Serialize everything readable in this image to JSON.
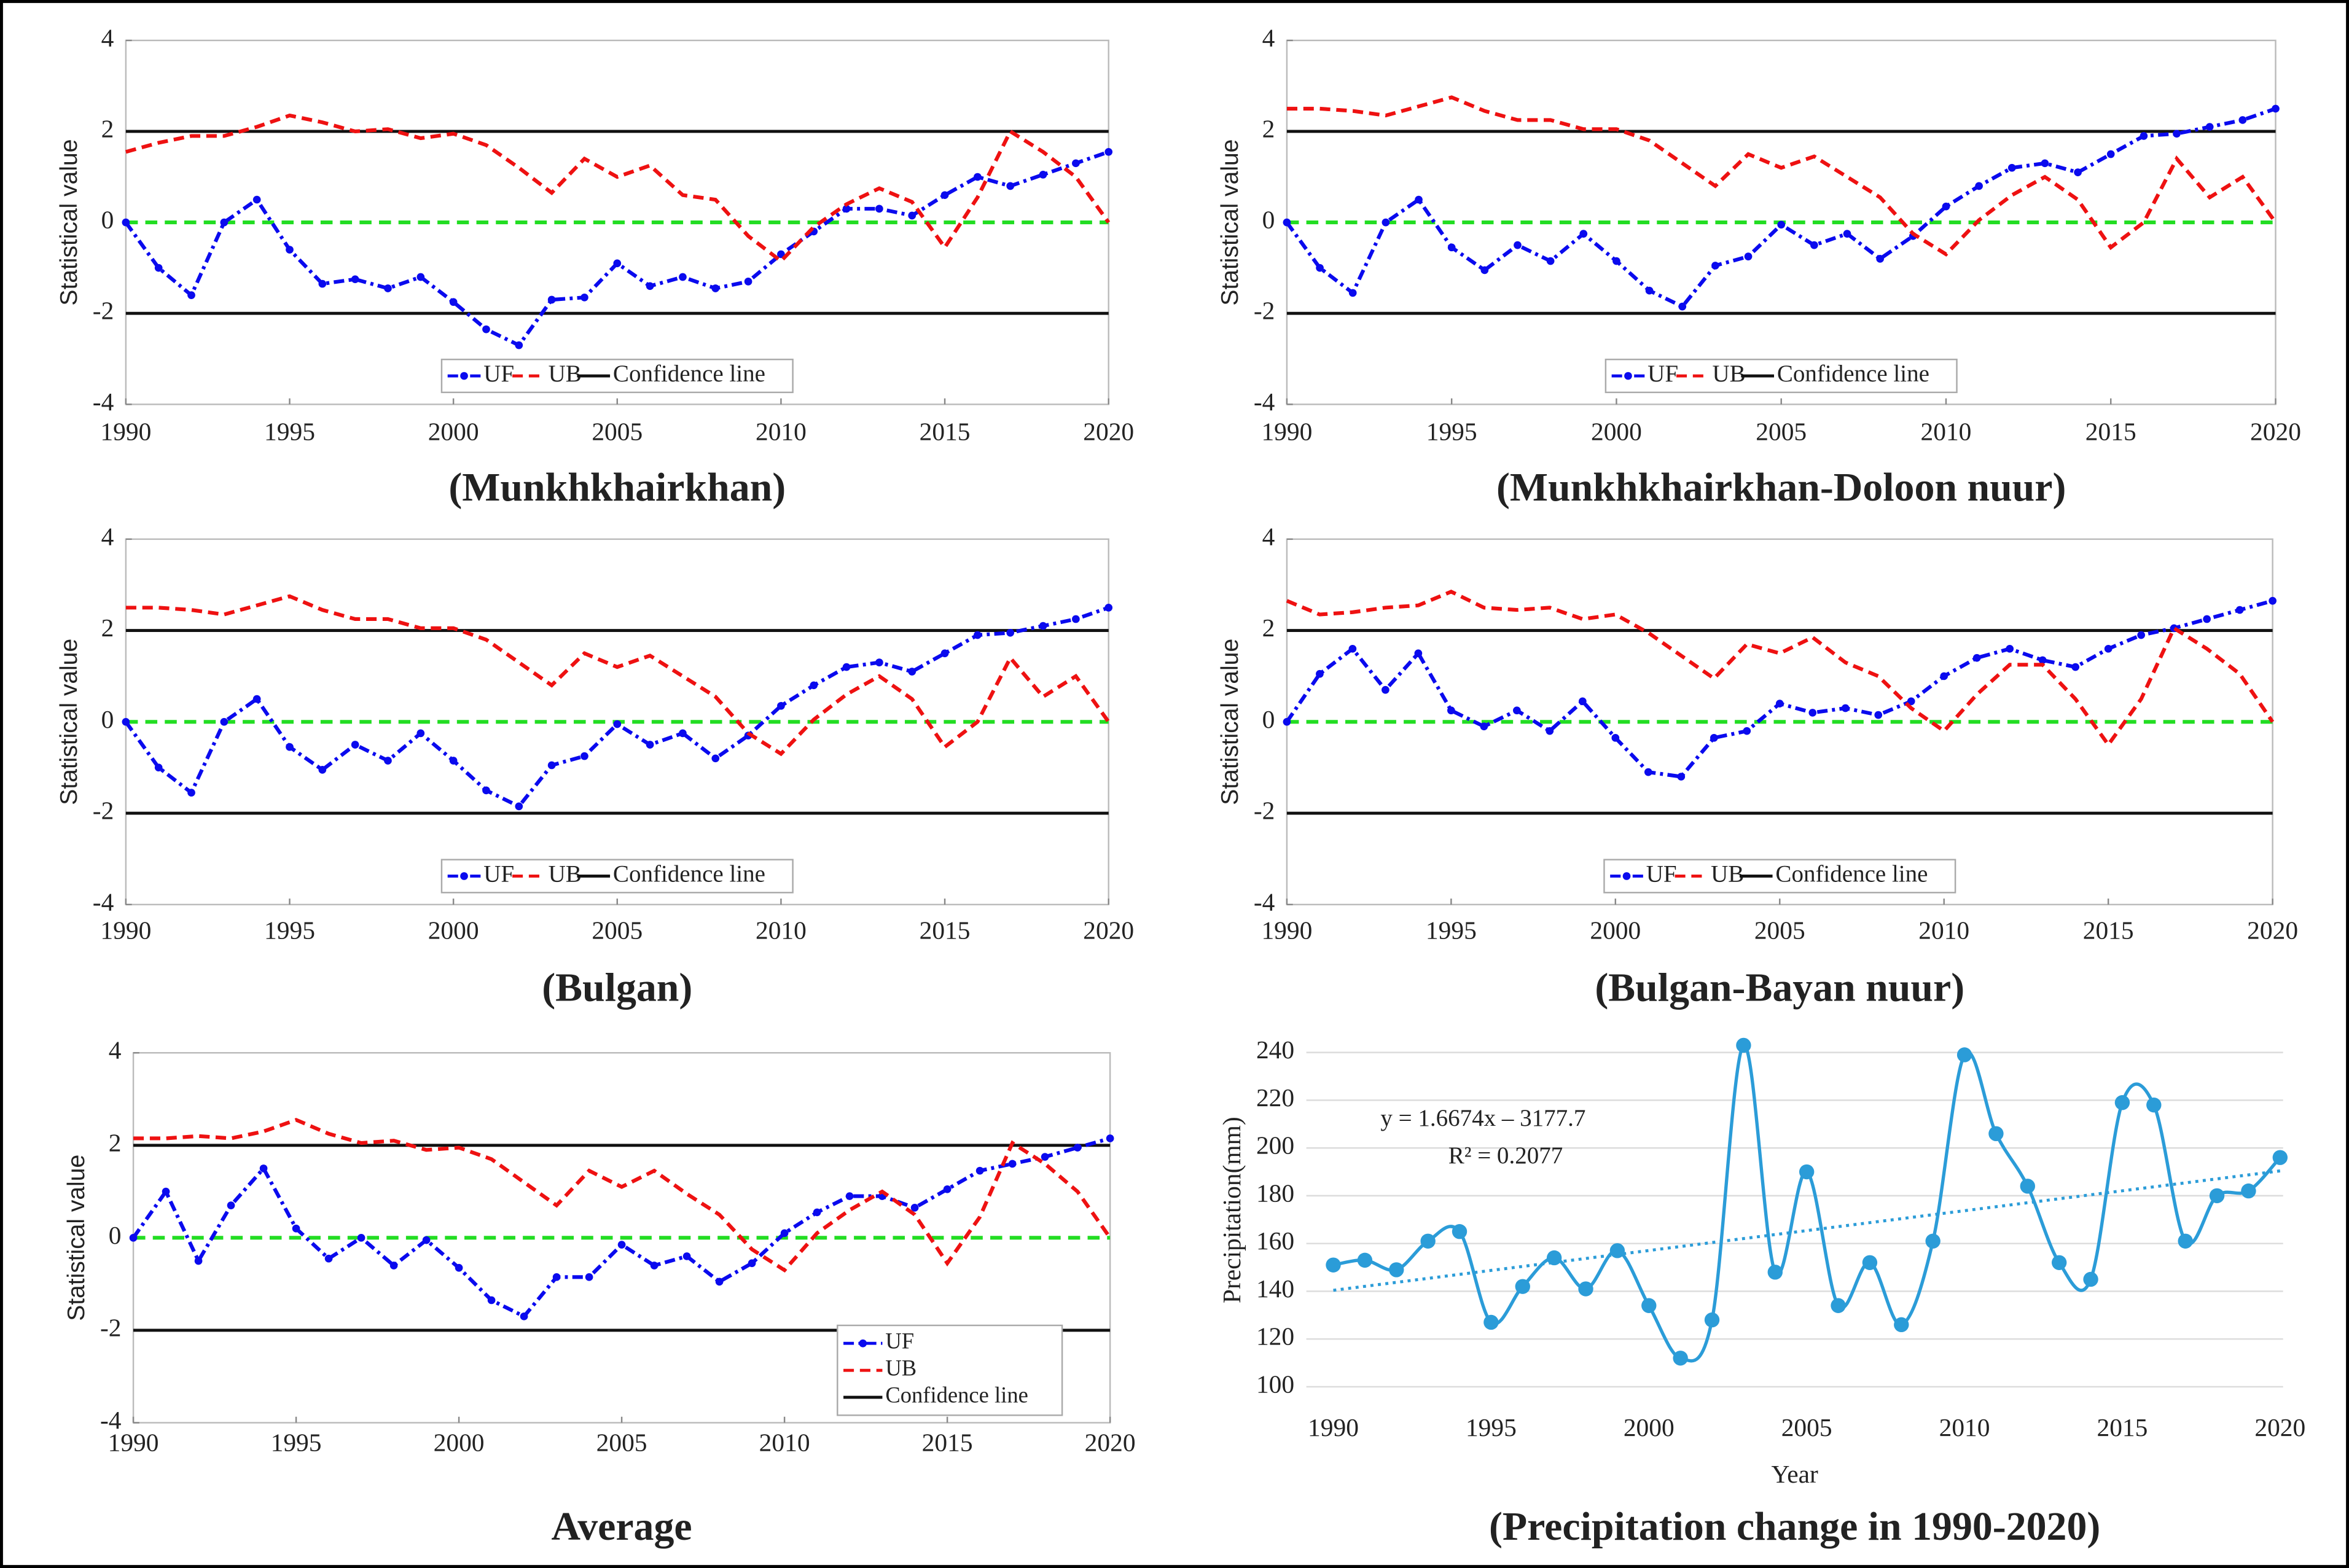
{
  "chart_data": [
    {
      "type": "line",
      "title": "(Munkhkhairkhan)",
      "ylabel": "Statistical value",
      "x": [
        1990,
        1991,
        1992,
        1993,
        1994,
        1995,
        1996,
        1997,
        1998,
        1999,
        2000,
        2001,
        2002,
        2003,
        2004,
        2005,
        2006,
        2007,
        2008,
        2009,
        2010,
        2011,
        2012,
        2013,
        2014,
        2015,
        2016,
        2017,
        2018,
        2019,
        2020
      ],
      "series": [
        {
          "name": "UF",
          "color": "#0a0aee",
          "style": "dashdot",
          "marker": true,
          "values": [
            0,
            -1.0,
            -1.6,
            0,
            0.5,
            -0.6,
            -1.35,
            -1.25,
            -1.45,
            -1.2,
            -1.75,
            -2.35,
            -2.7,
            -1.7,
            -1.65,
            -0.9,
            -1.4,
            -1.2,
            -1.45,
            -1.3,
            -0.7,
            -0.2,
            0.3,
            0.3,
            0.15,
            0.6,
            1.0,
            0.8,
            1.05,
            1.3,
            1.55
          ]
        },
        {
          "name": "UB",
          "color": "#ee1111",
          "style": "dashed",
          "marker": false,
          "values": [
            1.55,
            1.75,
            1.9,
            1.9,
            2.1,
            2.35,
            2.2,
            2.0,
            2.05,
            1.85,
            1.95,
            1.7,
            1.2,
            0.65,
            1.4,
            1.0,
            1.25,
            0.6,
            0.5,
            -0.3,
            -0.85,
            -0.1,
            0.4,
            0.75,
            0.45,
            -0.55,
            0.55,
            2.0,
            1.55,
            1.0,
            0
          ]
        }
      ],
      "reference_lines": {
        "name": "Confidence line",
        "color": "#111111",
        "values": [
          -2,
          2
        ]
      },
      "zero_line": {
        "value": 0,
        "color": "#22dd22"
      },
      "xlim": [
        1990,
        2020
      ],
      "xticks": [
        1990,
        1995,
        2000,
        2005,
        2010,
        2015,
        2020
      ],
      "ylim": [
        -4,
        4
      ],
      "yticks": [
        -4,
        -2,
        0,
        2,
        4
      ],
      "legend": "lower center"
    },
    {
      "type": "line",
      "title": "(Munkhkhairkhan-Doloon nuur)",
      "ylabel": "Statistical value",
      "x": [
        1990,
        1991,
        1992,
        1993,
        1994,
        1995,
        1996,
        1997,
        1998,
        1999,
        2000,
        2001,
        2002,
        2003,
        2004,
        2005,
        2006,
        2007,
        2008,
        2009,
        2010,
        2011,
        2012,
        2013,
        2014,
        2015,
        2016,
        2017,
        2018,
        2019,
        2020
      ],
      "series": [
        {
          "name": "UF",
          "color": "#0a0aee",
          "style": "dashdot",
          "marker": true,
          "values": [
            0,
            -1.0,
            -1.55,
            0,
            0.5,
            -0.55,
            -1.05,
            -0.5,
            -0.85,
            -0.25,
            -0.85,
            -1.5,
            -1.85,
            -0.95,
            -0.75,
            -0.05,
            -0.5,
            -0.25,
            -0.8,
            -0.3,
            0.35,
            0.8,
            1.2,
            1.3,
            1.1,
            1.5,
            1.9,
            1.95,
            2.1,
            2.25,
            2.5
          ]
        },
        {
          "name": "UB",
          "color": "#ee1111",
          "style": "dashed",
          "marker": false,
          "values": [
            2.5,
            2.5,
            2.45,
            2.35,
            2.55,
            2.75,
            2.45,
            2.25,
            2.25,
            2.05,
            2.05,
            1.8,
            1.3,
            0.8,
            1.5,
            1.2,
            1.45,
            1.0,
            0.55,
            -0.25,
            -0.7,
            0.05,
            0.6,
            1.0,
            0.5,
            -0.55,
            0.0,
            1.4,
            0.55,
            1.0,
            0
          ]
        }
      ],
      "reference_lines": {
        "name": "Confidence line",
        "color": "#111111",
        "values": [
          -2,
          2
        ]
      },
      "zero_line": {
        "value": 0,
        "color": "#22dd22"
      },
      "xlim": [
        1990,
        2020
      ],
      "xticks": [
        1990,
        1995,
        2000,
        2005,
        2010,
        2015,
        2020
      ],
      "ylim": [
        -4,
        4
      ],
      "yticks": [
        -4,
        -2,
        0,
        2,
        4
      ],
      "legend": "lower center"
    },
    {
      "type": "line",
      "title": "(Bulgan)",
      "ylabel": "Statistical value",
      "x": [
        1990,
        1991,
        1992,
        1993,
        1994,
        1995,
        1996,
        1997,
        1998,
        1999,
        2000,
        2001,
        2002,
        2003,
        2004,
        2005,
        2006,
        2007,
        2008,
        2009,
        2010,
        2011,
        2012,
        2013,
        2014,
        2015,
        2016,
        2017,
        2018,
        2019,
        2020
      ],
      "series": [
        {
          "name": "UF",
          "color": "#0a0aee",
          "style": "dashdot",
          "marker": true,
          "values": [
            0,
            -1.0,
            -1.55,
            0,
            0.5,
            -0.55,
            -1.05,
            -0.5,
            -0.85,
            -0.25,
            -0.85,
            -1.5,
            -1.85,
            -0.95,
            -0.75,
            -0.05,
            -0.5,
            -0.25,
            -0.8,
            -0.3,
            0.35,
            0.8,
            1.2,
            1.3,
            1.1,
            1.5,
            1.9,
            1.95,
            2.1,
            2.25,
            2.5
          ]
        },
        {
          "name": "UB",
          "color": "#ee1111",
          "style": "dashed",
          "marker": false,
          "values": [
            2.5,
            2.5,
            2.45,
            2.35,
            2.55,
            2.75,
            2.45,
            2.25,
            2.25,
            2.05,
            2.05,
            1.8,
            1.3,
            0.8,
            1.5,
            1.2,
            1.45,
            1.0,
            0.55,
            -0.25,
            -0.7,
            0.05,
            0.6,
            1.0,
            0.5,
            -0.55,
            0.0,
            1.4,
            0.55,
            1.0,
            0
          ]
        }
      ],
      "reference_lines": {
        "name": "Confidence line",
        "color": "#111111",
        "values": [
          -2,
          2
        ]
      },
      "zero_line": {
        "value": 0,
        "color": "#22dd22"
      },
      "xlim": [
        1990,
        2020
      ],
      "xticks": [
        1990,
        1995,
        2000,
        2005,
        2010,
        2015,
        2020
      ],
      "ylim": [
        -4,
        4
      ],
      "yticks": [
        -4,
        -2,
        0,
        2,
        4
      ],
      "legend": "lower center"
    },
    {
      "type": "line",
      "title": "(Bulgan-Bayan nuur)",
      "ylabel": "Statistical value",
      "x": [
        1990,
        1991,
        1992,
        1993,
        1994,
        1995,
        1996,
        1997,
        1998,
        1999,
        2000,
        2001,
        2002,
        2003,
        2004,
        2005,
        2006,
        2007,
        2008,
        2009,
        2010,
        2011,
        2012,
        2013,
        2014,
        2015,
        2016,
        2017,
        2018,
        2019,
        2020
      ],
      "series": [
        {
          "name": "UF",
          "color": "#0a0aee",
          "style": "dashdot",
          "marker": true,
          "values": [
            0,
            1.05,
            1.6,
            0.7,
            1.5,
            0.25,
            -0.1,
            0.25,
            -0.2,
            0.45,
            -0.35,
            -1.1,
            -1.2,
            -0.35,
            -0.2,
            0.4,
            0.2,
            0.3,
            0.15,
            0.45,
            1.0,
            1.4,
            1.6,
            1.35,
            1.2,
            1.6,
            1.9,
            2.05,
            2.25,
            2.45,
            2.65
          ]
        },
        {
          "name": "UB",
          "color": "#ee1111",
          "style": "dashed",
          "marker": false,
          "values": [
            2.65,
            2.35,
            2.4,
            2.5,
            2.55,
            2.85,
            2.5,
            2.45,
            2.5,
            2.25,
            2.35,
            1.95,
            1.45,
            0.95,
            1.7,
            1.5,
            1.85,
            1.3,
            1.0,
            0.3,
            -0.2,
            0.6,
            1.25,
            1.25,
            0.5,
            -0.5,
            0.5,
            2.05,
            1.6,
            1.05,
            0
          ]
        }
      ],
      "reference_lines": {
        "name": "Confidence line",
        "color": "#111111",
        "values": [
          -2,
          2
        ]
      },
      "zero_line": {
        "value": 0,
        "color": "#22dd22"
      },
      "xlim": [
        1990,
        2020
      ],
      "xticks": [
        1990,
        1995,
        2000,
        2005,
        2010,
        2015,
        2020
      ],
      "ylim": [
        -4,
        4
      ],
      "yticks": [
        -4,
        -2,
        0,
        2,
        4
      ],
      "legend": "lower center"
    },
    {
      "type": "line",
      "title": "Average",
      "ylabel": "Statistical value",
      "x": [
        1990,
        1991,
        1992,
        1993,
        1994,
        1995,
        1996,
        1997,
        1998,
        1999,
        2000,
        2001,
        2002,
        2003,
        2004,
        2005,
        2006,
        2007,
        2008,
        2009,
        2010,
        2011,
        2012,
        2013,
        2014,
        2015,
        2016,
        2017,
        2018,
        2019,
        2020
      ],
      "series": [
        {
          "name": "UF",
          "color": "#0a0aee",
          "style": "dashdot",
          "marker": true,
          "values": [
            0,
            1.0,
            -0.5,
            0.7,
            1.5,
            0.2,
            -0.45,
            0,
            -0.6,
            -0.05,
            -0.65,
            -1.35,
            -1.7,
            -0.85,
            -0.85,
            -0.15,
            -0.6,
            -0.4,
            -0.95,
            -0.55,
            0.1,
            0.55,
            0.9,
            0.9,
            0.65,
            1.05,
            1.45,
            1.6,
            1.75,
            1.95,
            2.15
          ]
        },
        {
          "name": "UB",
          "color": "#ee1111",
          "style": "dashed",
          "marker": false,
          "values": [
            2.15,
            2.15,
            2.2,
            2.15,
            2.3,
            2.55,
            2.25,
            2.05,
            2.1,
            1.9,
            1.95,
            1.7,
            1.2,
            0.7,
            1.45,
            1.1,
            1.45,
            0.95,
            0.5,
            -0.25,
            -0.7,
            0.1,
            0.6,
            1.0,
            0.5,
            -0.55,
            0.45,
            2.05,
            1.6,
            1.0,
            0
          ]
        }
      ],
      "reference_lines": {
        "name": "Confidence line",
        "color": "#111111",
        "values": [
          -2,
          2
        ]
      },
      "zero_line": {
        "value": 0,
        "color": "#22dd22"
      },
      "xlim": [
        1990,
        2020
      ],
      "xticks": [
        1990,
        1995,
        2000,
        2005,
        2010,
        2015,
        2020
      ],
      "ylim": [
        -4,
        4
      ],
      "yticks": [
        -4,
        -2,
        0,
        2,
        4
      ],
      "legend": "lower right"
    },
    {
      "type": "line",
      "title": "(Precipitation change in 1990-2020)",
      "ylabel": "Precipitation(mm)",
      "xlabel": "Year",
      "x": [
        1990,
        1991,
        1992,
        1993,
        1994,
        1995,
        1996,
        1997,
        1998,
        1999,
        2000,
        2001,
        2002,
        2003,
        2004,
        2005,
        2006,
        2007,
        2008,
        2009,
        2010,
        2011,
        2012,
        2013,
        2014,
        2015,
        2016,
        2017,
        2018,
        2019,
        2020
      ],
      "series": [
        {
          "color": "#2b9cd8",
          "style": "solid",
          "marker": true,
          "smooth": true,
          "values": [
            151,
            153,
            149,
            161,
            165,
            127,
            142,
            154,
            141,
            157,
            134,
            112,
            128,
            243,
            148,
            190,
            134,
            152,
            126,
            161,
            239,
            206,
            184,
            152,
            145,
            219,
            218,
            161,
            180,
            182,
            196
          ]
        }
      ],
      "trendline": {
        "x": [
          1990,
          2020
        ],
        "values": [
          140.4,
          190.4
        ],
        "color": "#2b9cd8"
      },
      "annotations": [
        "y = 1.6674x – 3177.7",
        "R² = 0.2077"
      ],
      "xlim": [
        1990,
        2020
      ],
      "xticks": [
        1990,
        1995,
        2000,
        2005,
        2010,
        2015,
        2020
      ],
      "ylim": [
        100,
        248
      ],
      "yticks": [
        100,
        120,
        140,
        160,
        180,
        200,
        220,
        240
      ],
      "grid": true
    }
  ]
}
